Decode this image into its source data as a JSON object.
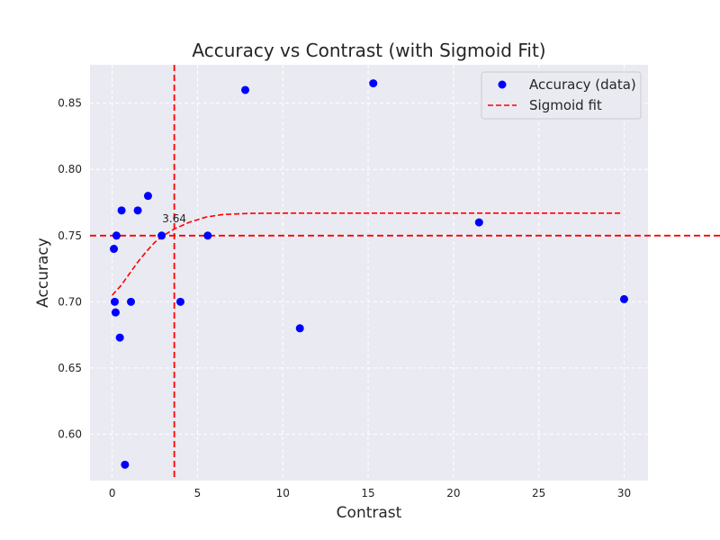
{
  "chart_data": {
    "type": "scatter",
    "title": "Accuracy vs Contrast (with Sigmoid Fit)",
    "xlabel": "Contrast",
    "ylabel": "Accuracy",
    "xlim": [
      -1.3,
      31.4
    ],
    "ylim": [
      0.565,
      0.879
    ],
    "xticks": [
      0,
      5,
      10,
      15,
      20,
      25,
      30
    ],
    "yticks": [
      0.6,
      0.65,
      0.7,
      0.75,
      0.8,
      0.85
    ],
    "xtick_labels": [
      "0",
      "5",
      "10",
      "15",
      "20",
      "25",
      "30"
    ],
    "ytick_labels": [
      "0.60",
      "0.65",
      "0.70",
      "0.75",
      "0.80",
      "0.85"
    ],
    "grid": true,
    "legend_position": "top-right",
    "series": [
      {
        "name": "Accuracy (data)",
        "kind": "scatter",
        "color": "#0000ff",
        "points": [
          {
            "x": 0.1,
            "y": 0.74
          },
          {
            "x": 0.15,
            "y": 0.7
          },
          {
            "x": 0.2,
            "y": 0.692
          },
          {
            "x": 0.25,
            "y": 0.75
          },
          {
            "x": 0.45,
            "y": 0.673
          },
          {
            "x": 0.55,
            "y": 0.769
          },
          {
            "x": 0.75,
            "y": 0.577
          },
          {
            "x": 1.1,
            "y": 0.7
          },
          {
            "x": 1.5,
            "y": 0.769
          },
          {
            "x": 2.1,
            "y": 0.78
          },
          {
            "x": 2.9,
            "y": 0.75
          },
          {
            "x": 4.0,
            "y": 0.7
          },
          {
            "x": 5.6,
            "y": 0.75
          },
          {
            "x": 7.8,
            "y": 0.86
          },
          {
            "x": 11.0,
            "y": 0.68
          },
          {
            "x": 15.3,
            "y": 0.865
          },
          {
            "x": 21.5,
            "y": 0.76
          },
          {
            "x": 30.0,
            "y": 0.702
          }
        ]
      },
      {
        "name": "Sigmoid fit",
        "kind": "line",
        "style": "dashed",
        "color": "#ff0000",
        "points": [
          {
            "x": 0.0,
            "y": 0.705
          },
          {
            "x": 0.5,
            "y": 0.712
          },
          {
            "x": 1.0,
            "y": 0.721
          },
          {
            "x": 1.5,
            "y": 0.73
          },
          {
            "x": 2.0,
            "y": 0.738
          },
          {
            "x": 2.5,
            "y": 0.745
          },
          {
            "x": 3.0,
            "y": 0.75
          },
          {
            "x": 3.64,
            "y": 0.755
          },
          {
            "x": 4.5,
            "y": 0.76
          },
          {
            "x": 5.5,
            "y": 0.764
          },
          {
            "x": 6.5,
            "y": 0.766
          },
          {
            "x": 8.0,
            "y": 0.7668
          },
          {
            "x": 10.0,
            "y": 0.767
          },
          {
            "x": 15.0,
            "y": 0.767
          },
          {
            "x": 20.0,
            "y": 0.767
          },
          {
            "x": 25.0,
            "y": 0.767
          },
          {
            "x": 29.8,
            "y": 0.767
          }
        ]
      }
    ],
    "reference_lines": [
      {
        "orientation": "vertical",
        "value": 3.64,
        "color": "#ff0000",
        "style": "dashed"
      },
      {
        "orientation": "horizontal",
        "value": 0.75,
        "color": "#ff0000",
        "style": "dashed"
      }
    ],
    "annotations": [
      {
        "text": "3.64",
        "x": 3.64,
        "y": 0.75
      }
    ],
    "colors": {
      "plot_background": "#eaeaf2",
      "grid": "#ffffff",
      "scatter": "#0000ff",
      "fit_line": "#ff0000"
    }
  }
}
